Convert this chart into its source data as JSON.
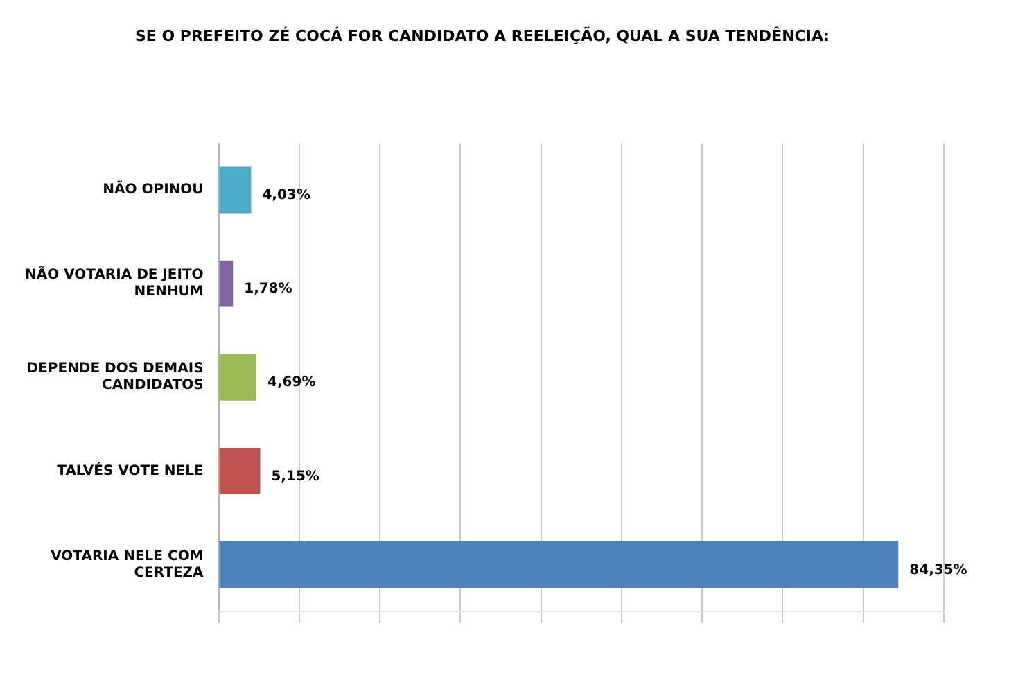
{
  "chart_data": {
    "type": "bar",
    "orientation": "horizontal",
    "title": "SE O PREFEITO ZÉ COCÁ FOR CANDIDATO A REELEIÇÃO, QUAL A SUA TENDÊNCIA:",
    "categories": [
      "NÃO OPINOU",
      "NÃO VOTARIA DE JEITO NENHUM",
      "DEPENDE DOS DEMAIS CANDIDATOS",
      "TALVÉS VOTE NELE",
      "VOTARIA NELE COM CERTEZA"
    ],
    "values": [
      4.03,
      1.78,
      4.69,
      5.15,
      84.35
    ],
    "colors": [
      "#4bacc6",
      "#8064a2",
      "#9bbb59",
      "#c0504d",
      "#4f81bd"
    ],
    "value_labels": [
      "4,03%",
      "1,78%",
      "4,69%",
      "5,15%",
      "84,35%"
    ],
    "grid": "x",
    "tick_labels": "y",
    "legend": false
  }
}
